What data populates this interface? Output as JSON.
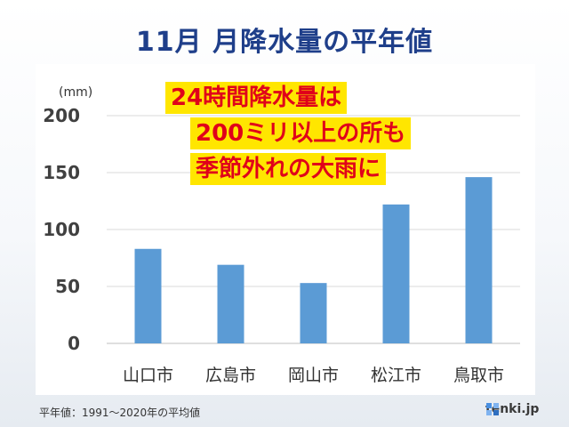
{
  "header": {
    "title": "11月 月降水量の平年値"
  },
  "callout": {
    "line1": "24時間降水量は",
    "line2": "200ミリ以上の所も",
    "line3": "季節外れの大雨に"
  },
  "footer": {
    "note": "平年値：1991〜2020年の平均値",
    "brand": "tenki.jp"
  },
  "colors": {
    "bar": "#5b9bd5",
    "title": "#1f3f8a",
    "callout_text": "#e0001a",
    "callout_bg": "#ffe600"
  },
  "chart_data": {
    "type": "bar",
    "title": "11月 月降水量の平年値",
    "unit_label": "(mm)",
    "categories": [
      "山口市",
      "広島市",
      "岡山市",
      "松江市",
      "鳥取市"
    ],
    "values": [
      83,
      69,
      53,
      122,
      146
    ],
    "ylim": [
      0,
      200
    ],
    "yticks": [
      0,
      50,
      100,
      150,
      200
    ],
    "ytick_labels": [
      "0",
      "50",
      "100",
      "150",
      "200"
    ],
    "grid": true,
    "legend": "none"
  }
}
